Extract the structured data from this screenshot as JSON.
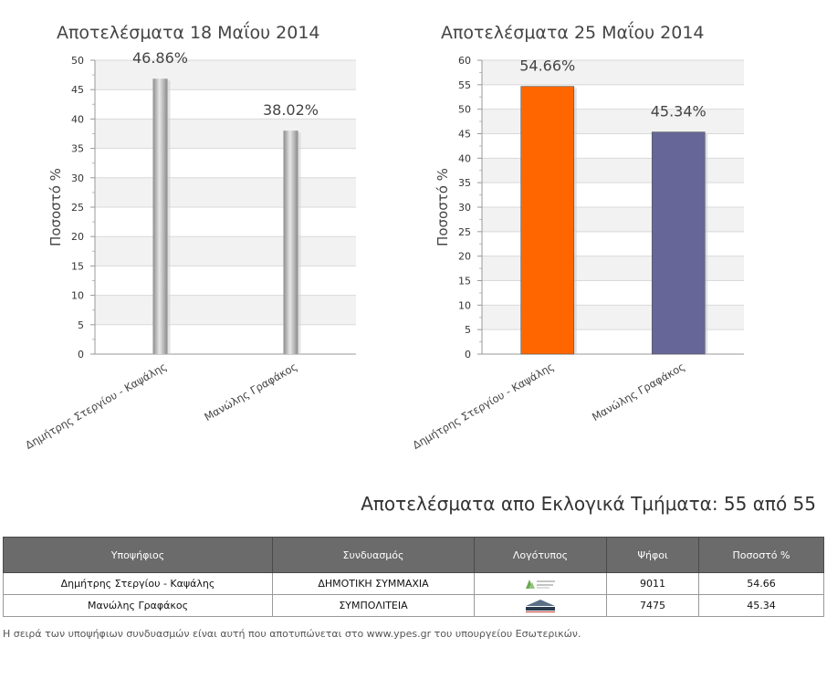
{
  "chart_data": [
    {
      "type": "bar",
      "title": "Αποτελέσματα 18 Μαΐου 2014",
      "ylabel": "Ποσοστό %",
      "xlabel": "",
      "categories": [
        "Δημήτρης Στεργίου - Καψάλης",
        "Μανώλης Γραφάκος"
      ],
      "values": [
        46.86,
        38.02
      ],
      "data_labels": [
        "46.86%",
        "38.02%"
      ],
      "ylim": [
        0,
        50
      ],
      "yticks": [
        "0",
        "5",
        "10",
        "15",
        "20",
        "25",
        "30",
        "35",
        "40",
        "45",
        "50"
      ],
      "bar_colors": [
        "#a8a8a8",
        "#a8a8a8"
      ],
      "grid": true
    },
    {
      "type": "bar",
      "title": "Αποτελέσματα 25 Μαΐου 2014",
      "ylabel": "Ποσοστό %",
      "xlabel": "",
      "categories": [
        "Δημήτρης Στεργίου - Καψάλης",
        "Μανώλης Γραφάκος"
      ],
      "values": [
        54.66,
        45.34
      ],
      "data_labels": [
        "54.66%",
        "45.34%"
      ],
      "ylim": [
        0,
        60
      ],
      "yticks": [
        "0",
        "5",
        "10",
        "15",
        "20",
        "25",
        "30",
        "35",
        "40",
        "45",
        "50",
        "55",
        "60"
      ],
      "bar_colors": [
        "#ff6600",
        "#666699"
      ],
      "grid": true
    }
  ],
  "results": {
    "heading": "Αποτελέσματα απο Εκλογικά Τμήματα: 55 από 55",
    "columns": [
      "Υποψήφιος",
      "Συνδυασμός",
      "Λογότυπος",
      "Ψήφοι",
      "Ποσοστό %"
    ],
    "rows": [
      {
        "candidate": "Δημήτρης Στεργίου - Καψάλης",
        "party": "ΔΗΜΟΤΙΚΗ ΣΥΜΜΑΧΙΑ",
        "logo": "dimotiki-symmaxia-logo",
        "votes": "9011",
        "percent": "54.66"
      },
      {
        "candidate": "Μανώλης Γραφάκος",
        "party": "ΣΥΜΠΟΛΙΤΕΙΑ",
        "logo": "sympoliteia-logo",
        "votes": "7475",
        "percent": "45.34"
      }
    ],
    "footnote": "Η σειρά των υποψήφιων συνδυασμών είναι αυτή που αποτυπώνεται στο www.ypes.gr του υπουργείου Εσωτερικών."
  }
}
